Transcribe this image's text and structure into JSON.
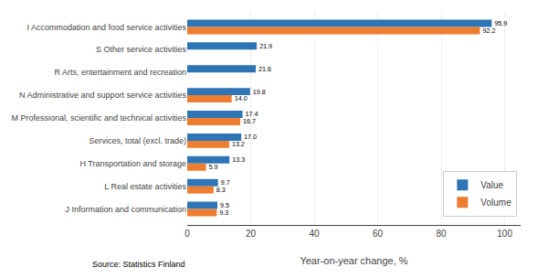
{
  "chart_data": {
    "type": "bar",
    "orientation": "horizontal",
    "categories": [
      "J Information and communication",
      "L Real estate activities",
      "H Transportation and storage",
      "Services, total (excl. trade)",
      "M Professional, scientific and technical activities",
      "N Administrative and support service activities",
      "R Arts, entertainment and recreation",
      "S Other service activities",
      "I Accommodation and food service activities"
    ],
    "series": [
      {
        "name": "Value",
        "color": "#2E75B6",
        "values": [
          9.5,
          9.7,
          13.3,
          17.0,
          17.4,
          19.8,
          21.6,
          21.9,
          95.9
        ],
        "value_labels": [
          "9.5",
          "9.7",
          "13.3",
          "17.0",
          "17.4",
          "19.8",
          "21.6",
          "21.9",
          "95.9"
        ]
      },
      {
        "name": "Volume",
        "color": "#ED7D31",
        "values": [
          9.3,
          8.3,
          5.9,
          13.2,
          16.7,
          14.0,
          null,
          null,
          92.2
        ],
        "value_labels": [
          "9.3",
          "8.3",
          "5.9",
          "13.2",
          "16.7",
          "14.0",
          null,
          null,
          "92.2"
        ]
      }
    ],
    "xlabel": "Year-on-year change, %",
    "xlim": [
      0,
      105
    ],
    "xticks": [
      0,
      20,
      40,
      60,
      80,
      100
    ],
    "grid": true,
    "data_labels": true,
    "legend": "lower right",
    "source": "Source: Statistics Finland"
  }
}
